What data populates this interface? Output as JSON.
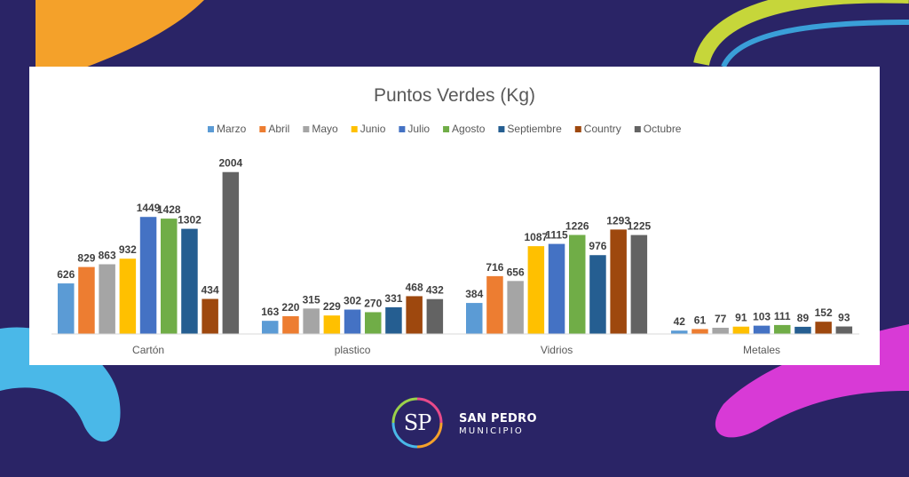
{
  "colors": {
    "background": "#2a2466",
    "accent_orange": "#f4a12a",
    "accent_green": "#c6d63a",
    "accent_blue": "#4ab8e8",
    "accent_pink": "#d83ad6"
  },
  "logo": {
    "mark": "SP",
    "name": "SAN PEDRO",
    "subtitle": "MUNICIPIO"
  },
  "chart_data": {
    "type": "bar",
    "title": "Puntos Verdes (Kg)",
    "xlabel": "",
    "ylabel": "",
    "ylim": [
      0,
      2100
    ],
    "grid": false,
    "legend_position": "top",
    "categories": [
      "Cartón",
      "plastico",
      "Vidrios",
      "Metales"
    ],
    "series": [
      {
        "name": "Marzo",
        "color": "#5b9bd5",
        "values": [
          626,
          163,
          384,
          42
        ]
      },
      {
        "name": "Abril",
        "color": "#ed7d31",
        "values": [
          829,
          220,
          716,
          61
        ]
      },
      {
        "name": "Mayo",
        "color": "#a5a5a5",
        "values": [
          863,
          315,
          656,
          77
        ]
      },
      {
        "name": "Junio",
        "color": "#ffc000",
        "values": [
          932,
          229,
          1087,
          91
        ]
      },
      {
        "name": "Julio",
        "color": "#4472c4",
        "values": [
          1449,
          302,
          1115,
          103
        ]
      },
      {
        "name": "Agosto",
        "color": "#70ad47",
        "values": [
          1428,
          270,
          1226,
          111
        ]
      },
      {
        "name": "Septiembre",
        "color": "#255e91",
        "values": [
          1302,
          331,
          976,
          89
        ]
      },
      {
        "name": "Country",
        "color": "#9e480e",
        "values": [
          434,
          468,
          1293,
          152
        ]
      },
      {
        "name": "Octubre",
        "color": "#636363",
        "values": [
          2004,
          432,
          1225,
          93
        ]
      }
    ]
  }
}
